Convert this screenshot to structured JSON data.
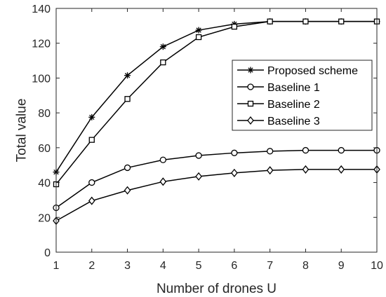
{
  "chart_data": {
    "type": "line",
    "xlabel": "Number of drones U",
    "ylabel": "Total value",
    "x": [
      1,
      2,
      3,
      4,
      5,
      6,
      7,
      8,
      9,
      10
    ],
    "xlim": [
      1,
      10
    ],
    "ylim": [
      0,
      140
    ],
    "xticks": [
      "1",
      "2",
      "3",
      "4",
      "5",
      "6",
      "7",
      "8",
      "9",
      "10"
    ],
    "yticks": [
      "0",
      "20",
      "40",
      "60",
      "80",
      "100",
      "120",
      "140"
    ],
    "grid": false,
    "legend_position": "right",
    "series": [
      {
        "name": "Proposed scheme",
        "marker": "asterisk",
        "values": [
          46,
          77.5,
          101.5,
          118,
          127.5,
          131,
          132.5,
          132.5,
          132.5,
          132.5
        ]
      },
      {
        "name": "Baseline 1",
        "marker": "circle",
        "values": [
          25.5,
          40,
          48.5,
          53,
          55.5,
          57,
          58,
          58.5,
          58.5,
          58.5
        ]
      },
      {
        "name": "Baseline 2",
        "marker": "square",
        "values": [
          39,
          64.5,
          88,
          109,
          123.5,
          129.5,
          132.5,
          132.5,
          132.5,
          132.5
        ]
      },
      {
        "name": "Baseline 3",
        "marker": "diamond",
        "values": [
          18,
          29.5,
          35.5,
          40.5,
          43.5,
          45.5,
          47,
          47.5,
          47.5,
          47.5
        ]
      }
    ],
    "colors": {
      "line": "#000000",
      "axis": "#262626",
      "background": "#ffffff"
    }
  }
}
